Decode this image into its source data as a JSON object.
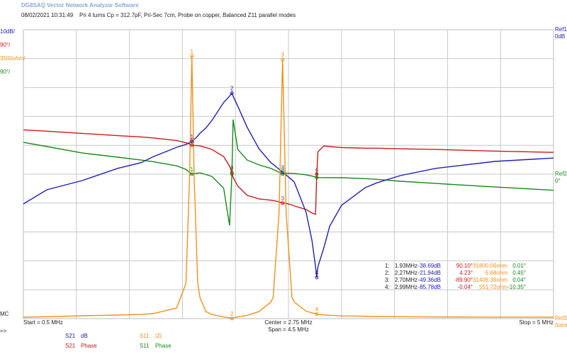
{
  "chart_data": {
    "type": "line",
    "app_title": "DG8SAQ Vector Network Analyzer Software",
    "date": "08/02/2021",
    "time": "10:31:49",
    "subtitle": "Pri 4 turns Cp = 312.7pF, Pri-Sec 7cm, Probe on copper, Balanced Z11 parallel modes",
    "xlim": [
      0.5,
      5
    ],
    "start_label": "Start = 0.5 MHz",
    "center_label": "Center = 2.75 MHz",
    "span_label": "Span = 4.5 MHz",
    "stop_label": "Stop = 5 MHz",
    "mode_label": "MC",
    "arrow_label": "=>",
    "grid": true,
    "x": [
      0.5,
      0.7,
      1.0,
      1.3,
      1.5,
      1.6,
      1.8,
      1.88,
      1.91,
      1.93,
      1.95,
      1.98,
      2.0,
      2.05,
      2.1,
      2.2,
      2.25,
      2.27,
      2.28,
      2.32,
      2.4,
      2.5,
      2.6,
      2.62,
      2.67,
      2.7,
      2.73,
      2.78,
      2.8,
      2.9,
      2.95,
      2.98,
      2.99,
      3.0,
      3.05,
      3.1,
      3.2,
      3.4,
      3.5,
      3.7,
      4.0,
      4.5,
      5.0
    ],
    "series": [
      {
        "name": "S21",
        "format": "dB",
        "scale": "10dB/",
        "color": "#2020b0",
        "ylim": [
          -100,
          0
        ],
        "values": [
          -60.3,
          -55.4,
          -52.2,
          -48,
          -46,
          -44,
          -40.7,
          -39.7,
          -39.1,
          -38.69,
          -38,
          -36.8,
          -35.8,
          -34,
          -31.4,
          -25.2,
          -23,
          -21.94,
          -23,
          -26.5,
          -33.8,
          -41.2,
          -46,
          -46.6,
          -48.3,
          -49.36,
          -50.3,
          -52,
          -52.8,
          -63.2,
          -73,
          -82,
          -85.78,
          -82,
          -75.5,
          -68,
          -60.8,
          -54.7,
          -53,
          -50.5,
          -48,
          -45.6,
          -44.4
        ]
      },
      {
        "name": "S21",
        "format": "Phase",
        "scale": "90°/",
        "color": "#c41c1c",
        "ylim": [
          -450,
          450
        ],
        "values": [
          138,
          134,
          127,
          120,
          116,
          113,
          105,
          98,
          94,
          90.1,
          89.5,
          89,
          88,
          83,
          77,
          55,
          25,
          4.23,
          -10,
          -37,
          -66,
          -77,
          -81,
          -82,
          -86,
          -89.9,
          -91,
          -96,
          -99,
          -110,
          -121,
          -125,
          -0.04,
          70,
          88,
          86,
          83,
          81,
          81,
          79,
          77,
          72,
          68
        ]
      },
      {
        "name": "S11",
        "format": "|Z|",
        "scale": "3500ohm/",
        "color": "#f0901a",
        "ylim": [
          0,
          35000
        ],
        "values": [
          170,
          230,
          340,
          430,
          510,
          600,
          1280,
          4270,
          17000,
          31800.06,
          17000,
          4270,
          2500,
          850,
          500,
          200,
          100,
          6.68,
          100,
          200,
          400,
          850,
          2000,
          2560,
          12800,
          31406.36,
          12800,
          2560,
          2000,
          900,
          700,
          600,
          551.72,
          500,
          450,
          400,
          330,
          280,
          260,
          230,
          200,
          180,
          170
        ]
      },
      {
        "name": "S11",
        "format": "Phase",
        "scale": "90°/",
        "color": "#17891a",
        "ylim": [
          -450,
          450
        ],
        "values": [
          99,
          86,
          66,
          53,
          44,
          39,
          26,
          15,
          6,
          0.01,
          1.5,
          3,
          4,
          -1,
          -7,
          -44,
          -160,
          0.45,
          170,
          77,
          44,
          29,
          18,
          15,
          6,
          0.04,
          3,
          2.5,
          2,
          -2,
          -6,
          -9,
          -10.35,
          -10.5,
          -10.7,
          -10.8,
          -11,
          -14,
          -16,
          -22,
          -29,
          -40,
          -50
        ]
      }
    ],
    "refs": [
      {
        "name": "Ref1",
        "value": "0dB",
        "color": "#2020b0",
        "y": 0,
        "series": 0
      },
      {
        "name": "Ref2",
        "value": "0°",
        "color": "#17891a",
        "y": 0,
        "series": 3
      },
      {
        "name": "Ref3",
        "value": "0ohm",
        "color": "#f0901a",
        "y": 0,
        "series": 2
      }
    ],
    "markers": [
      {
        "label": "1",
        "x": 1.93
      },
      {
        "label": "2",
        "x": 2.27
      },
      {
        "label": "3",
        "x": 2.7
      },
      {
        "label": "4",
        "x": 2.99
      }
    ],
    "marker_table": [
      [
        "1:",
        "1.93MHz",
        "-38.69dB",
        "90.10°",
        "31800.06ohm",
        "0.01°"
      ],
      [
        "2:",
        "2.27MHz",
        "-21.94dB",
        "4.23°",
        "6.68ohm",
        "0.45°"
      ],
      [
        "3:",
        "2.70MHz",
        "-49.36dB",
        "-89.90°",
        "31406.36ohm",
        "0.04°"
      ],
      [
        "4:",
        "2.99MHz",
        "-85.78dB",
        "-0.04°",
        "551.72ohm",
        "-10.35°"
      ]
    ]
  }
}
